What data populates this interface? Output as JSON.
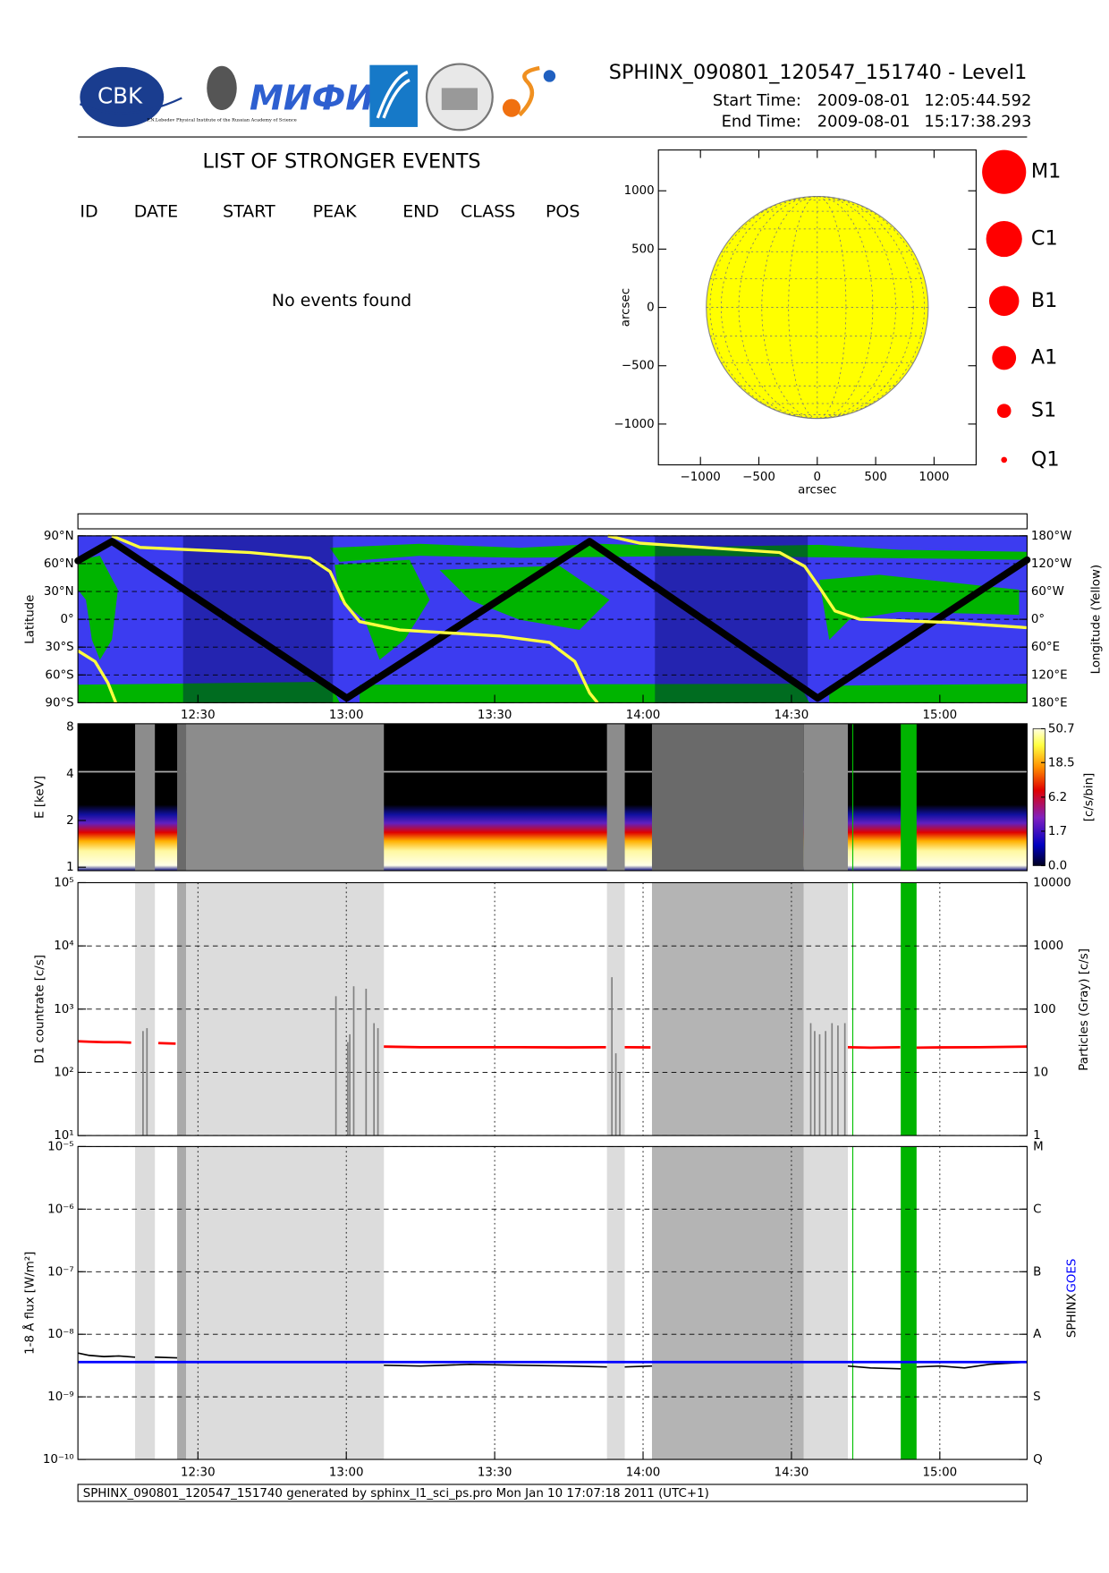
{
  "header": {
    "title": "SPHINX_090801_120547_151740 - Level1",
    "start_label": "Start Time:",
    "start_date": "2009-08-01",
    "start_time": "12:05:44.592",
    "end_label": "End Time:",
    "end_date": "2009-08-01",
    "end_time": "15:17:38.293",
    "logos": {
      "cbk": "CBK",
      "lebedev": "P.N.Lebedev Physical Institute of the Russian Academy of Science",
      "mifi": "МИФИ"
    }
  },
  "events": {
    "title": "LIST OF STRONGER EVENTS",
    "columns": [
      "ID",
      "DATE",
      "START",
      "PEAK",
      "END",
      "CLASS",
      "POS"
    ],
    "message": "No events found"
  },
  "classes": {
    "labels": [
      "M1",
      "C1",
      "B1",
      "A1",
      "S1",
      "Q1"
    ],
    "color": "#ff0000"
  },
  "footer": "SPHINX_090801_120547_151740 generated by sphinx_l1_sci_ps.pro Mon Jan 10 17:07:18 2011 (UTC+1)",
  "chart_data": [
    {
      "type": "disk",
      "xlabel": "arcsec",
      "ylabel": "arcsec",
      "xlim": [
        -1360,
        1360
      ],
      "ylim": [
        -1350,
        1350
      ],
      "xticks": [
        {
          "value": -1000,
          "label": "−1000"
        },
        {
          "value": -500,
          "label": "−500"
        },
        0,
        500,
        1000
      ],
      "yticks": [
        {
          "value": -1000,
          "label": "−1000"
        },
        {
          "value": -500,
          "label": "−500"
        },
        0,
        500,
        1000
      ],
      "radius": 950,
      "color": "#ffff00"
    },
    {
      "type": "track",
      "ylabel": "Latitude",
      "y2label": "Longitude (Yellow)",
      "xlim": [
        725.74,
        917.64
      ],
      "xticks": [
        {
          "value": 750,
          "label": "12:30"
        },
        {
          "value": 780,
          "label": "13:00"
        },
        {
          "value": 810,
          "label": "13:30"
        },
        {
          "value": 840,
          "label": "14:00"
        },
        {
          "value": 870,
          "label": "14:30"
        },
        {
          "value": 900,
          "label": "15:00"
        }
      ],
      "ylim": [
        -90,
        90
      ],
      "yticks": [
        {
          "value": -90,
          "label": "90°S"
        },
        {
          "value": -60,
          "label": "60°S"
        },
        {
          "value": -30,
          "label": "30°S"
        },
        {
          "value": 0,
          "label": "0°"
        },
        {
          "value": 30,
          "label": "30°N"
        },
        {
          "value": 60,
          "label": "60°N"
        },
        {
          "value": 90,
          "label": "90°N"
        }
      ],
      "y2lim": [
        180,
        -180
      ],
      "y2ticks": [
        {
          "value": 180,
          "label": "180°E"
        },
        {
          "value": 120,
          "label": "120°E"
        },
        {
          "value": 60,
          "label": "60°E"
        },
        {
          "value": 0,
          "label": "0°"
        },
        {
          "value": -60,
          "label": "60°W"
        },
        {
          "value": -120,
          "label": "120°W"
        },
        {
          "value": -180,
          "label": "180°W"
        }
      ],
      "grid": true,
      "eclipse": [
        [
          747.0,
          777.3
        ],
        [
          842.4,
          873.3
        ]
      ],
      "track": {
        "x": [
          725.74,
          732.6,
          780.1,
          829.2,
          875.3,
          917.64
        ],
        "values": [
          63,
          84,
          -85,
          84,
          -85,
          64
        ],
        "color": "#000000"
      },
      "longitude": {
        "axis": "y2",
        "color": "#ffff40",
        "x": [
          725.74,
          729.2,
          731.8,
          733.4,
          null,
          732.6,
          738.3,
          760.5,
          772.6,
          776.7,
          779.7,
          782.7,
          790.8,
          811.0,
          821.1,
          826.2,
          829.2,
          830.8,
          null,
          832.9,
          839.4,
          867.6,
          872.7,
          875.7,
          878.8,
          883.8,
          902.0,
          917.6
        ],
        "values": [
          68,
          91,
          137,
          180,
          null,
          -180,
          -155,
          -144,
          -132,
          -103,
          -34,
          5,
          23,
          36,
          50,
          91,
          159,
          180,
          null,
          -180,
          -164,
          -144,
          -114,
          -68,
          -18,
          0,
          7,
          18
        ]
      }
    },
    {
      "type": "spectrogram",
      "ylabel": "E [keV]",
      "colorbar_label": "[c/s/bin]",
      "ylog": true,
      "ylim": [
        0.95,
        8.4
      ],
      "yticks": [
        1,
        2,
        4,
        8
      ],
      "clim": [
        0,
        50.7
      ],
      "cticks": [
        {
          "value": 0,
          "label": "0.0"
        },
        1.7,
        6.2,
        18.5,
        50.7
      ],
      "intervals": [
        {
          "start": 737.3,
          "end": 741.3,
          "color": "#8c8c8c",
          "plot_color": "#dcdcdc"
        },
        {
          "start": 745.8,
          "end": 747.6,
          "color": "#6a6a6a",
          "plot_color": "#aaaaaa"
        },
        {
          "start": 747.6,
          "end": 787.6,
          "color": "#8c8c8c",
          "plot_color": "#dcdcdc"
        },
        {
          "start": 832.7,
          "end": 836.3,
          "color": "#8c8c8c",
          "plot_color": "#dcdcdc"
        },
        {
          "start": 841.8,
          "end": 872.5,
          "color": "#6a6a6a",
          "plot_color": "#b4b4b4"
        },
        {
          "start": 872.5,
          "end": 881.4,
          "color": "#8c8c8c",
          "plot_color": "#dcdcdc"
        },
        {
          "start": 892.1,
          "end": 895.3,
          "color": "#00b400",
          "plot_color": "#00b400"
        }
      ],
      "marker_time": 882.4,
      "marker_color": "#00c000"
    },
    {
      "type": "line",
      "ylabel": "D1 countrate [c/s]",
      "y2label": "Particles (Gray) [c/s]",
      "ylog": true,
      "ylim": [
        10,
        100000
      ],
      "yticks": [
        {
          "value": 10,
          "label": "10¹"
        },
        {
          "value": 100,
          "label": "10²"
        },
        {
          "value": 1000,
          "label": "10³"
        },
        {
          "value": 10000,
          "label": "10⁴"
        },
        {
          "value": 100000,
          "label": "10⁵"
        }
      ],
      "y2lim": [
        1,
        10000
      ],
      "y2ticks": [
        1,
        10,
        100,
        1000,
        10000
      ],
      "grid": true,
      "series": [
        {
          "color": "#ff0000",
          "x": [
            725.74,
            728,
            731,
            734,
            736.5,
            null,
            742,
            745.5,
            null,
            787.6,
            795,
            805,
            815,
            825,
            832.5,
            null,
            836.3,
            841.5,
            null,
            881.4,
            886,
            892,
            null,
            895.3,
            900,
            908,
            917.6
          ],
          "values": [
            310,
            305,
            300,
            300,
            295,
            null,
            290,
            285,
            null,
            255,
            250,
            250,
            250,
            248,
            250,
            null,
            250,
            248,
            null,
            250,
            245,
            250,
            null,
            245,
            248,
            250,
            255
          ]
        },
        {
          "color": "#808080",
          "axis": "y2",
          "style": "spikes",
          "x": [
            738.9,
            739.7,
            777.9,
            780.3,
            780.7,
            781.5,
            784.0,
            785.6,
            786.4,
            833.7,
            834.5,
            835.3,
            873.9,
            874.7,
            875.7,
            876.9,
            878.2,
            879.4,
            880.8
          ],
          "values": [
            45,
            50,
            160,
            30,
            40,
            230,
            210,
            60,
            50,
            320,
            20,
            10,
            60,
            45,
            40,
            45,
            60,
            55,
            60
          ]
        }
      ]
    },
    {
      "type": "line",
      "ylabel": "1-8 Å flux [W/m²]",
      "ylog": true,
      "ylim": [
        1e-10,
        1e-05
      ],
      "xlim": [
        725.74,
        917.64
      ],
      "xticks": [
        {
          "value": 750,
          "label": "12:30"
        },
        {
          "value": 780,
          "label": "13:00"
        },
        {
          "value": 810,
          "label": "13:30"
        },
        {
          "value": 840,
          "label": "14:00"
        },
        {
          "value": 870,
          "label": "14:30"
        },
        {
          "value": 900,
          "label": "15:00"
        }
      ],
      "yticks": [
        {
          "value": 1e-10,
          "label": "10⁻¹⁰"
        },
        {
          "value": 1e-09,
          "label": "10⁻⁹"
        },
        {
          "value": 1e-08,
          "label": "10⁻⁸"
        },
        {
          "value": 1e-07,
          "label": "10⁻⁷"
        },
        {
          "value": 1e-06,
          "label": "10⁻⁶"
        },
        {
          "value": 1e-05,
          "label": "10⁻⁵"
        }
      ],
      "y2lim": [
        1e-10,
        1e-05
      ],
      "y2ticks": [
        {
          "value": 1e-10,
          "label": "Q"
        },
        {
          "value": 1e-09,
          "label": "S"
        },
        {
          "value": 1e-08,
          "label": "A"
        },
        {
          "value": 1e-07,
          "label": "B"
        },
        {
          "value": 1e-06,
          "label": "C"
        },
        {
          "value": 1e-05,
          "label": "M"
        }
      ],
      "grid": true,
      "series": [
        {
          "name": "SPHINX",
          "color": "#000000",
          "x": [
            725.74,
            728,
            731,
            734,
            737.3,
            null,
            741.3,
            745.8,
            null,
            787.6,
            795,
            805,
            815,
            825,
            832.7,
            null,
            836.3,
            841.8,
            null,
            881.4,
            886,
            892.1,
            null,
            895.3,
            900,
            905,
            910,
            917.6
          ],
          "values": [
            5e-09,
            4.6e-09,
            4.4e-09,
            4.5e-09,
            4.3e-09,
            null,
            4.3e-09,
            4.2e-09,
            null,
            3.2e-09,
            3.1e-09,
            3.3e-09,
            3.2e-09,
            3.1e-09,
            3e-09,
            null,
            3e-09,
            3.1e-09,
            null,
            3.1e-09,
            2.9e-09,
            2.8e-09,
            null,
            3e-09,
            3.1e-09,
            2.9e-09,
            3.3e-09,
            3.6e-09
          ]
        },
        {
          "name": "GOES",
          "color": "#0000ff",
          "x": [
            725.74,
            917.64
          ],
          "values": [
            3.6e-09,
            3.6e-09
          ]
        }
      ]
    }
  ]
}
